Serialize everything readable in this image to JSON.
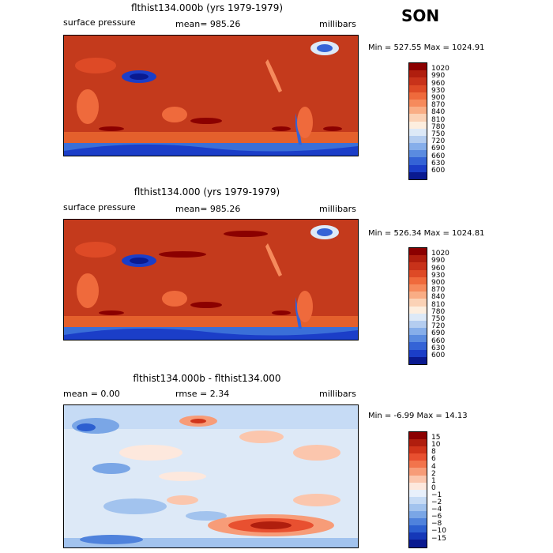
{
  "season": "SON",
  "panels": [
    {
      "title": "flthist134.000b (yrs 1979-1979)",
      "left": "surface pressure",
      "center": "mean= 985.26",
      "right": "millibars",
      "minmax": "Min = 527.55 Max = 1024.91"
    },
    {
      "title": "flthist134.000 (yrs 1979-1979)",
      "left": "surface pressure",
      "center": "mean= 985.26",
      "right": "millibars",
      "minmax": "Min = 526.34 Max = 1024.81"
    },
    {
      "title": "flthist134.000b - flthist134.000",
      "left": "mean =    0.00",
      "center": "rmse =    2.34",
      "right": "millibars",
      "minmax": "Min =  -6.99 Max =   14.13"
    }
  ],
  "colorbar_abs": {
    "labels": [
      "1020",
      "990",
      "960",
      "930",
      "900",
      "870",
      "840",
      "810",
      "780",
      "750",
      "720",
      "690",
      "660",
      "630",
      "600"
    ],
    "colors": [
      "#8b0000",
      "#b01e0e",
      "#c8321a",
      "#de4a26",
      "#ef6a3c",
      "#f68a5c",
      "#f9ad85",
      "#fbd2b6",
      "#fdeedf",
      "#dde9f7",
      "#b4cdf0",
      "#86aeea",
      "#5a8be0",
      "#3463d6",
      "#1b3ec8",
      "#0a1a90"
    ]
  },
  "colorbar_diff": {
    "labels": [
      "15",
      "10",
      "8",
      "6",
      "4",
      "2",
      "1",
      "0",
      "−1",
      "−2",
      "−4",
      "−6",
      "−8",
      "−10",
      "−15"
    ],
    "colors": [
      "#8b0000",
      "#b01e0e",
      "#d0341a",
      "#e85030",
      "#f2744c",
      "#f79c78",
      "#fbc6ad",
      "#fde8dd",
      "#e8f0fb",
      "#c6dbf5",
      "#a2c3ee",
      "#7aa6e6",
      "#4f82dc",
      "#2c5fd0",
      "#1538b8",
      "#0a1a90"
    ]
  }
}
